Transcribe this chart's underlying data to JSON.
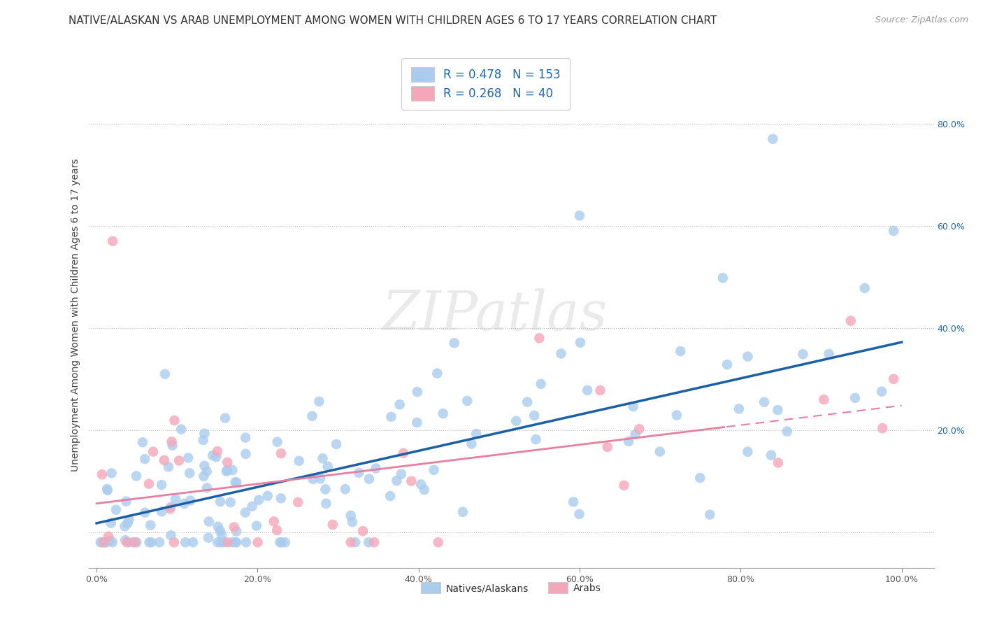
{
  "title": "NATIVE/ALASKAN VS ARAB UNEMPLOYMENT AMONG WOMEN WITH CHILDREN AGES 6 TO 17 YEARS CORRELATION CHART",
  "source": "Source: ZipAtlas.com",
  "ylabel": "Unemployment Among Women with Children Ages 6 to 17 years",
  "xlim": [
    -0.01,
    1.04
  ],
  "ylim": [
    -0.07,
    0.92
  ],
  "xticks": [
    0.0,
    0.2,
    0.4,
    0.6,
    0.8,
    1.0
  ],
  "yticks_right": [
    0.2,
    0.4,
    0.6,
    0.8
  ],
  "xtick_labels": [
    "0.0%",
    "20.0%",
    "40.0%",
    "60.0%",
    "80.0%",
    "100.0%"
  ],
  "ytick_labels_right": [
    "20.0%",
    "40.0%",
    "60.0%",
    "80.0%"
  ],
  "blue_color": "#aaccee",
  "pink_color": "#f4a7b9",
  "blue_line_color": "#1a5fa8",
  "pink_line_color": "#e87fa0",
  "R_blue": 0.478,
  "N_blue": 153,
  "R_pink": 0.268,
  "N_pink": 40,
  "watermark": "ZIPatlas",
  "legend_label_blue": "Natives/Alaskans",
  "legend_label_pink": "Arabs",
  "title_fontsize": 11,
  "axis_label_fontsize": 10,
  "tick_fontsize": 9,
  "legend_fontsize": 12
}
